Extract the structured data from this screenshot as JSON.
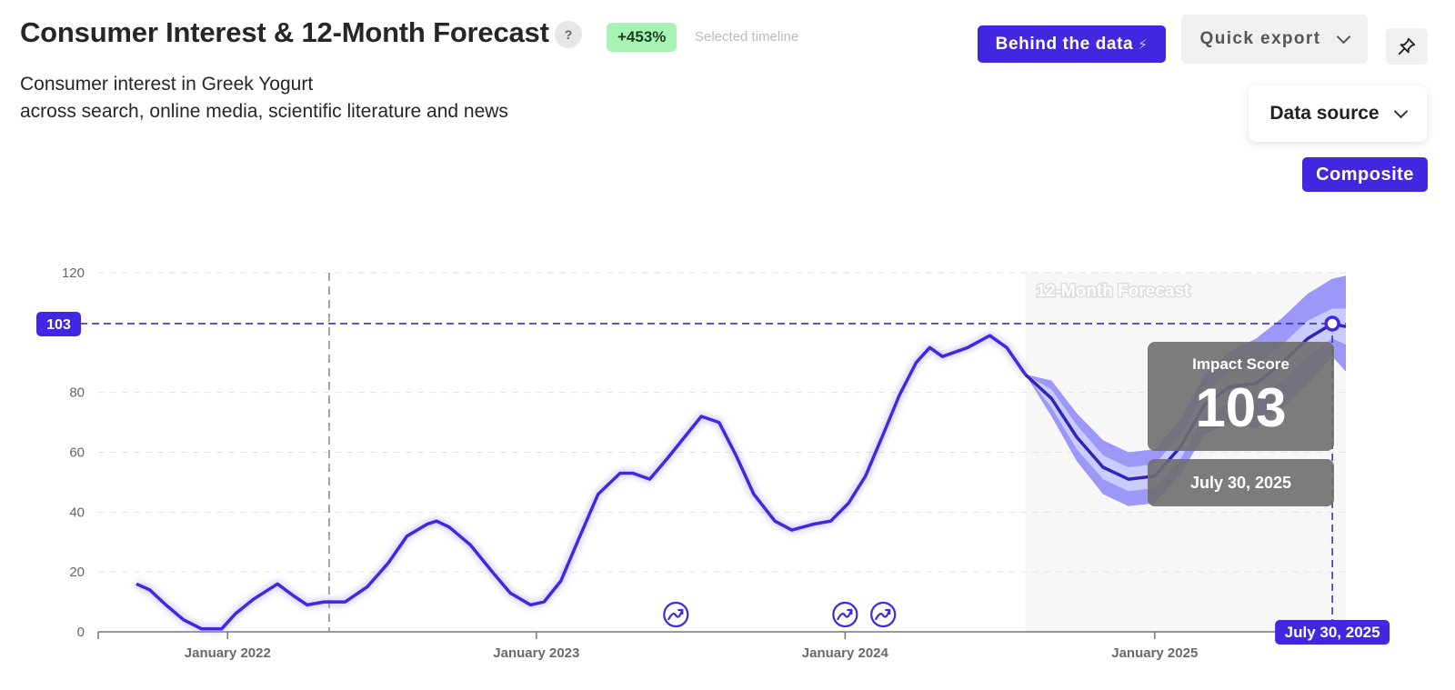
{
  "header": {
    "title": "Consumer Interest & 12-Month Forecast",
    "help_label": "?",
    "change_badge": "+453%",
    "timeline_label": "Selected timeline",
    "subtitle_line1": "Consumer interest in Greek Yogurt",
    "subtitle_line2": "across search, online media, scientific literature and news"
  },
  "toolbar": {
    "behind_label": "Behind the data",
    "export_label": "Quick export",
    "datasource_label": "Data source",
    "composite_label": "Composite"
  },
  "colors": {
    "accent": "#4128e0",
    "band_outer": "#9d97f7",
    "band_inner": "#c9ccff",
    "badge_green": "#a6f4b3",
    "tooltip_bg": "#6e6e6e"
  },
  "chart_data": {
    "type": "line",
    "xlabel": "",
    "ylabel": "",
    "ylim": [
      0,
      120
    ],
    "yticks": [
      0,
      20,
      40,
      60,
      80,
      120
    ],
    "xticks": [
      "2022-01-01",
      "2023-01-01",
      "2024-01-01",
      "2025-01-01"
    ],
    "xtick_labels": [
      "January 2022",
      "January 2023",
      "January 2024",
      "January 2025"
    ],
    "xlim": [
      "2021-08-01",
      "2025-08-15"
    ],
    "grid": true,
    "annotations": {
      "forecast_label": "12-Month Forecast",
      "forecast_start": "2024-08-01",
      "forecast_end": "2025-08-15",
      "selected_timeline_start": "2022-05-01",
      "reference_value": 103,
      "reference_label": "103",
      "tooltip_title": "Impact Score",
      "tooltip_value": "103",
      "tooltip_date": "July 30, 2025",
      "highlight_date": "2025-07-30",
      "highlight_date_label": "July 30, 2025",
      "event_dates": [
        "2023-06-15",
        "2024-01-01",
        "2024-02-15"
      ]
    },
    "series": [
      {
        "kind": "historical",
        "points": [
          [
            "2021-09-15",
            16
          ],
          [
            "2021-10-01",
            14
          ],
          [
            "2021-10-20",
            9
          ],
          [
            "2021-11-10",
            4
          ],
          [
            "2021-12-01",
            1
          ],
          [
            "2021-12-25",
            1
          ],
          [
            "2022-01-10",
            6
          ],
          [
            "2022-02-01",
            11
          ],
          [
            "2022-03-01",
            16
          ],
          [
            "2022-03-20",
            12
          ],
          [
            "2022-04-05",
            9
          ],
          [
            "2022-04-25",
            10
          ],
          [
            "2022-05-20",
            10
          ],
          [
            "2022-06-15",
            15
          ],
          [
            "2022-07-10",
            23
          ],
          [
            "2022-08-01",
            32
          ],
          [
            "2022-08-25",
            36
          ],
          [
            "2022-09-05",
            37
          ],
          [
            "2022-09-20",
            35
          ],
          [
            "2022-10-15",
            29
          ],
          [
            "2022-11-10",
            20
          ],
          [
            "2022-12-01",
            13
          ],
          [
            "2022-12-25",
            9
          ],
          [
            "2023-01-10",
            10
          ],
          [
            "2023-01-30",
            17
          ],
          [
            "2023-02-20",
            31
          ],
          [
            "2023-03-15",
            46
          ],
          [
            "2023-04-10",
            53
          ],
          [
            "2023-04-25",
            53
          ],
          [
            "2023-05-15",
            51
          ],
          [
            "2023-06-05",
            58
          ],
          [
            "2023-06-25",
            65
          ],
          [
            "2023-07-15",
            72
          ],
          [
            "2023-08-05",
            70
          ],
          [
            "2023-08-25",
            59
          ],
          [
            "2023-09-15",
            46
          ],
          [
            "2023-10-10",
            37
          ],
          [
            "2023-10-30",
            34
          ],
          [
            "2023-11-25",
            36
          ],
          [
            "2023-12-15",
            37
          ],
          [
            "2024-01-05",
            43
          ],
          [
            "2024-01-25",
            52
          ],
          [
            "2024-02-15",
            66
          ],
          [
            "2024-03-05",
            79
          ],
          [
            "2024-03-25",
            90
          ],
          [
            "2024-04-10",
            95
          ],
          [
            "2024-04-25",
            92
          ],
          [
            "2024-05-25",
            95
          ],
          [
            "2024-06-20",
            99
          ],
          [
            "2024-07-10",
            95
          ],
          [
            "2024-08-01",
            86
          ]
        ]
      },
      {
        "kind": "forecast",
        "points": [
          [
            "2024-08-01",
            86
          ],
          [
            "2024-09-01",
            78
          ],
          [
            "2024-10-01",
            65
          ],
          [
            "2024-11-01",
            55
          ],
          [
            "2024-12-01",
            51
          ],
          [
            "2025-01-01",
            52
          ],
          [
            "2025-02-01",
            62
          ],
          [
            "2025-03-01",
            76
          ],
          [
            "2025-04-01",
            82
          ],
          [
            "2025-05-01",
            83
          ],
          [
            "2025-06-01",
            90
          ],
          [
            "2025-07-01",
            98
          ],
          [
            "2025-07-30",
            103
          ],
          [
            "2025-08-15",
            102
          ]
        ],
        "inner_band_upper": [
          86,
          81,
          69,
          59,
          55,
          56,
          66,
          80,
          87,
          89,
          96,
          104,
          108,
          108
        ],
        "inner_band_lower": [
          86,
          75,
          61,
          51,
          47,
          48,
          58,
          72,
          77,
          77,
          84,
          92,
          98,
          96
        ],
        "outer_band_upper": [
          86,
          84,
          73,
          64,
          60,
          61,
          71,
          86,
          94,
          98,
          105,
          113,
          118,
          119
        ],
        "outer_band_lower": [
          86,
          72,
          57,
          46,
          42,
          43,
          53,
          66,
          70,
          68,
          75,
          83,
          92,
          87
        ]
      }
    ]
  }
}
